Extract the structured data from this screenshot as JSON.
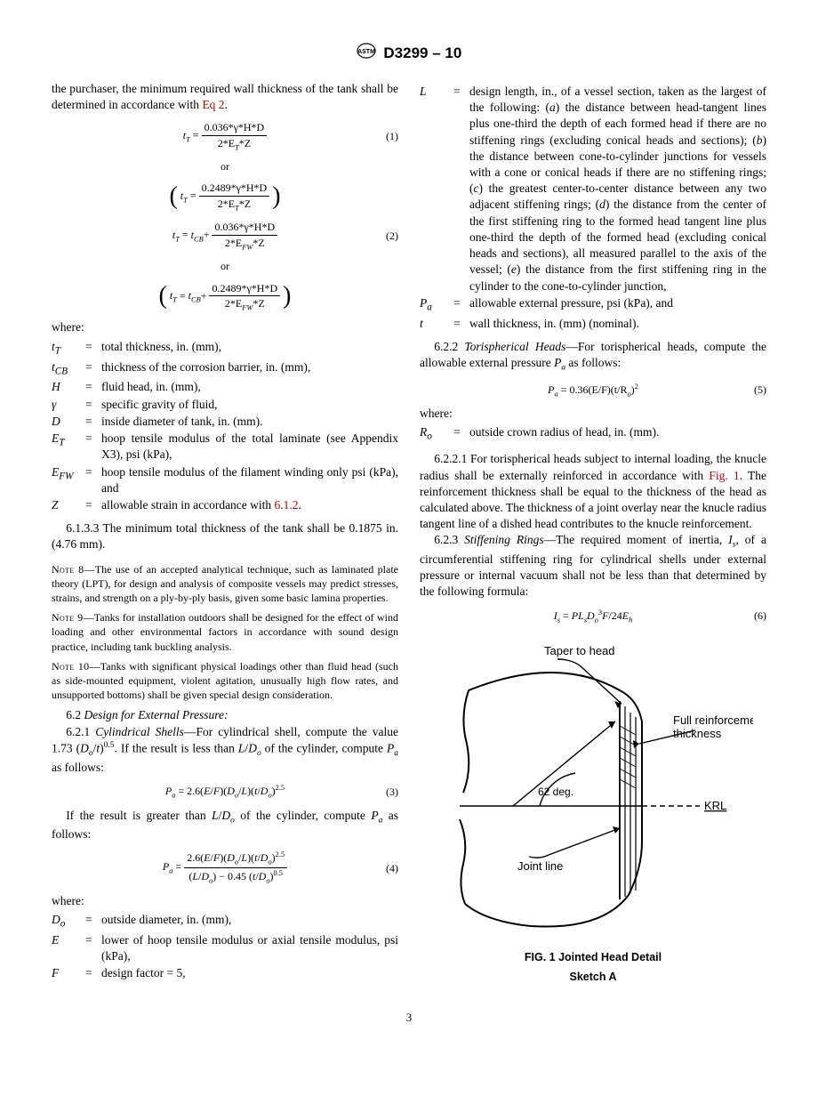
{
  "header": {
    "doc_id": "D3299 – 10"
  },
  "left": {
    "intro": "the purchaser, the minimum required wall thickness of the tank shall be determined in accordance with ",
    "intro_link": "Eq 2",
    "intro_tail": ".",
    "eq1": {
      "lhs": "t",
      "lhs_sub": "T",
      "top": "0.036*γ*H*D",
      "bot_a": "2*E",
      "bot_sub": "T",
      "bot_b": "*Z",
      "num": "(1)"
    },
    "or": "or",
    "eq1b": {
      "top": "0.2489*γ*H*D",
      "bot_a": "2*E",
      "bot_sub": "T",
      "bot_b": "*Z"
    },
    "eq2": {
      "lhs_a": "t",
      "lhs_sub_a": "T",
      "rhs_a": "t",
      "rhs_sub_a": "CB",
      "plus": "+",
      "top": "0.036*γ*H*D",
      "bot_a": "2*E",
      "bot_sub": "FW",
      "bot_b": "*Z",
      "num": "(2)"
    },
    "eq2b": {
      "top": "0.2489*γ*H*D",
      "bot_a": "2*E",
      "bot_sub": "FW",
      "bot_b": "*Z"
    },
    "where": "where:",
    "defs1": [
      {
        "sym_html": "t<sub>T</sub>",
        "txt": "total thickness, in. (mm),"
      },
      {
        "sym_html": "t<sub>CB</sub>",
        "txt": "thickness of the corrosion barrier, in. (mm),"
      },
      {
        "sym_html": "H",
        "txt": "fluid head, in. (mm),"
      },
      {
        "sym_html": "γ",
        "txt": "specific gravity of fluid,"
      },
      {
        "sym_html": "D",
        "txt": "inside diameter of tank, in. (mm)."
      },
      {
        "sym_html": "E<sub>T</sub>",
        "txt": "hoop tensile modulus of the total laminate (see Appendix X3), psi (kPa),"
      },
      {
        "sym_html": "E<sub>FW</sub>",
        "txt": "hoop tensile modulus of the filament winding only psi (kPa), and"
      },
      {
        "sym_html": "Z",
        "txt_a": "allowable strain in accordance with ",
        "link": "6.1.2",
        "txt_b": "."
      }
    ],
    "p6133": "6.1.3.3 The minimum total thickness of the tank shall be 0.1875 in. (4.76 mm).",
    "note8": "The use of an accepted analytical technique, such as laminated plate theory (LPT), for design and analysis of composite vessels may predict stresses, strains, and strength on a ply-by-ply basis, given some basic lamina properties.",
    "note8_lead": "Note 8—",
    "note9": "Tanks for installation outdoors shall be designed for the effect of wind loading and other environmental factors in accordance with sound design practice, including tank buckling analysis.",
    "note9_lead": "Note 9—",
    "note10": "Tanks with significant physical loadings other than fluid head (such as side-mounted equipment, violent agitation, unusually high flow rates, and unsupported bottoms) shall be given special design consideration.",
    "note10_lead": "Note 10—",
    "s62": "6.2 ",
    "s62_title": "Design for External Pressure:",
    "s621_a": "6.2.1 ",
    "s621_title": "Cylindrical Shells",
    "s621_b": "—For cylindrical shell, compute the value 1.73 (",
    "s621_c": "/",
    "s621_d": ")",
    "s621_e": ". If the result is less than ",
    "s621_f": "/",
    "s621_g": " of the cylinder, compute ",
    "s621_h": " as follows:",
    "eq3": {
      "body_a": "P",
      "body_sub": "a",
      "body_b": " = 2.6(",
      "body_c": "E",
      "body_d": "/",
      "body_e": "F",
      "body_f": ")(",
      "body_g": "D",
      "body_gsub": "o",
      "body_h": "/",
      "body_i": "L",
      "body_j": ")(",
      "body_k": "t",
      "body_l": "/",
      "body_m": "D",
      "body_msub": "o",
      "body_n": ")",
      "sup": "2.5",
      "num": "(3)"
    },
    "p_after3_a": "If the result is greater than ",
    "p_after3_b": "/",
    "p_after3_c": " of the cylinder, compute ",
    "p_after3_d": " as follows:",
    "eq4": {
      "top_a": "2.6(",
      "top_b": "E",
      "top_c": "/",
      "top_d": "F",
      "top_e": ")(",
      "top_f": "D",
      "top_fsub": "o",
      "top_g": "/",
      "top_h": "L",
      "top_i": ")(",
      "top_j": "t",
      "top_k": "/",
      "top_l": "D",
      "top_lsub": "o",
      "top_m": ")",
      "top_sup": "2.5",
      "bot_a": "(",
      "bot_b": "L",
      "bot_c": "/",
      "bot_d": "D",
      "bot_dsub": "o",
      "bot_e": ") − 0.45 (",
      "bot_f": "t",
      "bot_g": "/",
      "bot_h": "D",
      "bot_hsub": "o",
      "bot_i": ")",
      "bot_sup": "0.5",
      "num": "(4)"
    },
    "where2": "where:",
    "defs2": [
      {
        "sym_html": "D<sub>o</sub>",
        "txt": "outside diameter, in. (mm),"
      },
      {
        "sym_html": "E",
        "txt": "lower of hoop tensile modulus or axial tensile modulus, psi (kPa),"
      },
      {
        "sym_html": "F",
        "txt": "design factor = 5,"
      }
    ]
  },
  "right": {
    "defs3": [
      {
        "sym_html": "L",
        "txt_a": "design length, in., of a vessel section, taken as the largest of the following: (",
        "txt_b": ") the distance between head-tangent lines plus one-third the depth of each formed head if there are no stiffening rings (excluding conical heads and sections); (",
        "txt_c": ") the distance between cone-to-cylinder junctions for vessels with a cone or conical heads if there are no stiffening rings; (",
        "txt_d": ") the greatest center-to-center distance between any two adjacent stiffening rings; (",
        "txt_e": ") the distance from the center of the first stiffening ring to the formed head tangent line plus one-third the depth of the formed head (excluding conical heads and sections), all measured parallel to the axis of the vessel; (",
        "txt_f": ") the distance from the first stiffening ring in the cylinder to the cone-to-cylinder junction,",
        "la": "a",
        "lb": "b",
        "lc": "c",
        "ld": "d",
        "le": "e"
      },
      {
        "sym_html": "P<sub>a</sub>",
        "txt": "allowable external pressure, psi (kPa), and"
      },
      {
        "sym_html": "t",
        "txt": "wall thickness, in. (mm) (nominal)."
      }
    ],
    "s622_a": "6.2.2 ",
    "s622_title": "Torispherical Heads",
    "s622_b": "—For torispherical heads, compute the allowable external pressure ",
    "s622_c": " as follows:",
    "eq5": {
      "body": "P",
      "body_sub": "a",
      "body_b": " = 0.36(E/F)(t/R",
      "body_bsub": "o",
      "body_c": ")",
      "sup": "2",
      "num": "(5)"
    },
    "where3": "where:",
    "defs4": [
      {
        "sym_html": "R<sub>o</sub>",
        "txt": "outside crown radius of head, in. (mm)."
      }
    ],
    "p6221_a": "6.2.2.1 For torispherical heads subject to internal loading, the knucle radius shall be externally reinforced in accordance with ",
    "p6221_link": "Fig. 1",
    "p6221_b": ". The reinforcement thickness shall be equal to the thickness of the head as calculated above. The thickness of a joint overlay near the knucle radius tangent line of a dished head contributes to the knucle reinforcement.",
    "s623_a": "6.2.3 ",
    "s623_title": "Stiffening Rings",
    "s623_b": "—The required moment of inertia, ",
    "s623_c": ", of a circumferential stiffening ring for cylindrical shells under external pressure or internal vacuum shall not be less than that determined by the following formula:",
    "eq6": {
      "body_a": "I",
      "body_asub": "s",
      "body_b": " = ",
      "body_c": "PL",
      "body_csub": "s",
      "body_d": "D",
      "body_dsub": "o",
      "body_dsup": "3",
      "body_e": "F",
      "body_f": "/24",
      "body_g": "E",
      "body_gsub": "h",
      "num": "(6)"
    },
    "fig": {
      "label_taper": "Taper to head",
      "label_full": "Full reinforcement\nthickness",
      "label_angle": "62 deg.",
      "label_krl": "KRL",
      "label_joint": "Joint line",
      "caption1": "FIG. 1 Jointed Head Detail",
      "caption2": "Sketch A"
    }
  },
  "pagenum": "3"
}
